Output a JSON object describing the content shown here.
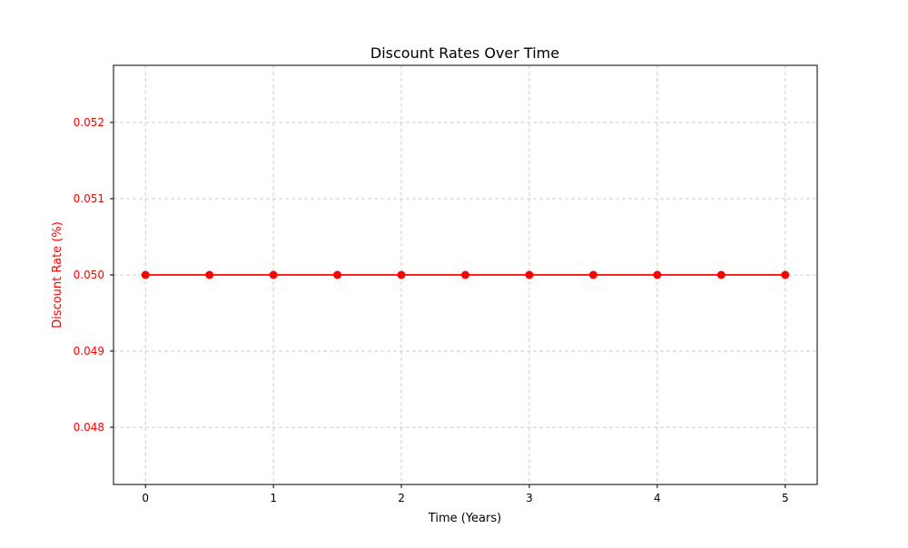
{
  "chart_data": {
    "type": "line",
    "title": "Discount Rates Over Time",
    "xlabel": "Time (Years)",
    "ylabel": "Discount Rate (%)",
    "x": [
      0,
      0.5,
      1,
      1.5,
      2,
      2.5,
      3,
      3.5,
      4,
      4.5,
      5
    ],
    "series": [
      {
        "values": [
          0.05,
          0.05,
          0.05,
          0.05,
          0.05,
          0.05,
          0.05,
          0.05,
          0.05,
          0.05,
          0.05
        ]
      }
    ],
    "xlim": [
      -0.25,
      5.25
    ],
    "ylim": [
      0.04725,
      0.05275
    ],
    "xticks": [
      0,
      1,
      2,
      3,
      4,
      5
    ],
    "xtick_labels": [
      "0",
      "1",
      "2",
      "3",
      "4",
      "5"
    ],
    "yticks": [
      0.048,
      0.049,
      0.05,
      0.051,
      0.052
    ],
    "ytick_labels": [
      "0.048",
      "0.049",
      "0.050",
      "0.051",
      "0.052"
    ],
    "grid": true,
    "legend": false,
    "colors": {
      "series": "#ff0000",
      "ylabel": "#ff0000",
      "ytick_labels": "#ff0000",
      "grid": "#cccccc",
      "axes": "#000000"
    }
  }
}
